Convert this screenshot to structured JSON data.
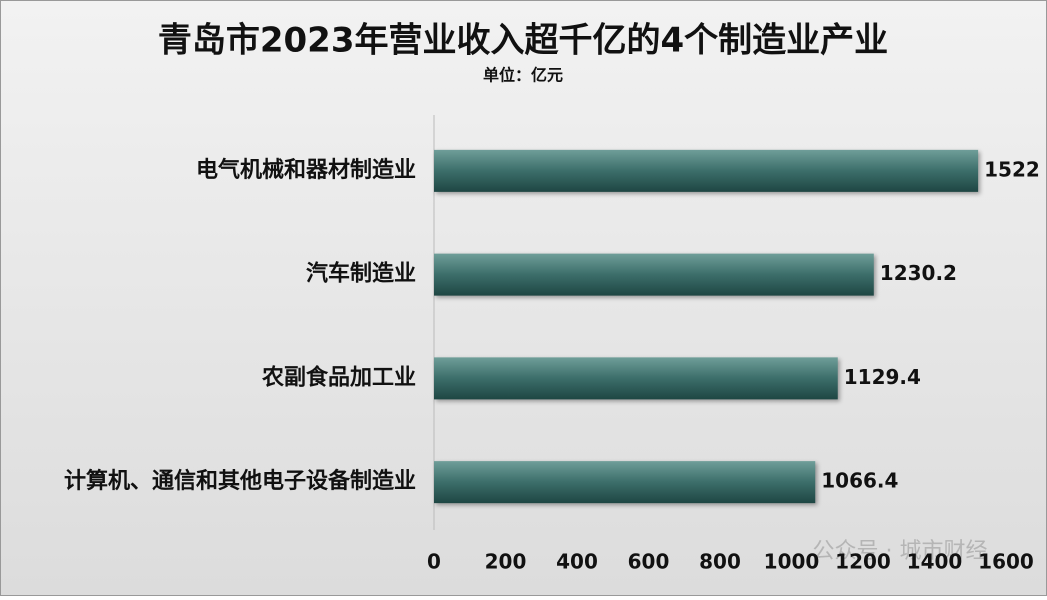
{
  "chart_data": {
    "type": "bar",
    "orientation": "horizontal",
    "title": "青岛市2023年营业收入超千亿的4个制造业产业",
    "subtitle": "单位：亿元",
    "categories": [
      "电气机械和器材制造业",
      "汽车制造业",
      "农副食品加工业",
      "计算机、通信和其他电子设备制造业"
    ],
    "values": [
      1522,
      1230.2,
      1129.4,
      1066.4
    ],
    "color": "#2b5b57",
    "xlim": [
      0,
      1600
    ],
    "xticks": [
      0,
      200,
      400,
      600,
      800,
      1000,
      1200,
      1400,
      1600
    ],
    "watermark": "公众号 · 城市财经"
  }
}
